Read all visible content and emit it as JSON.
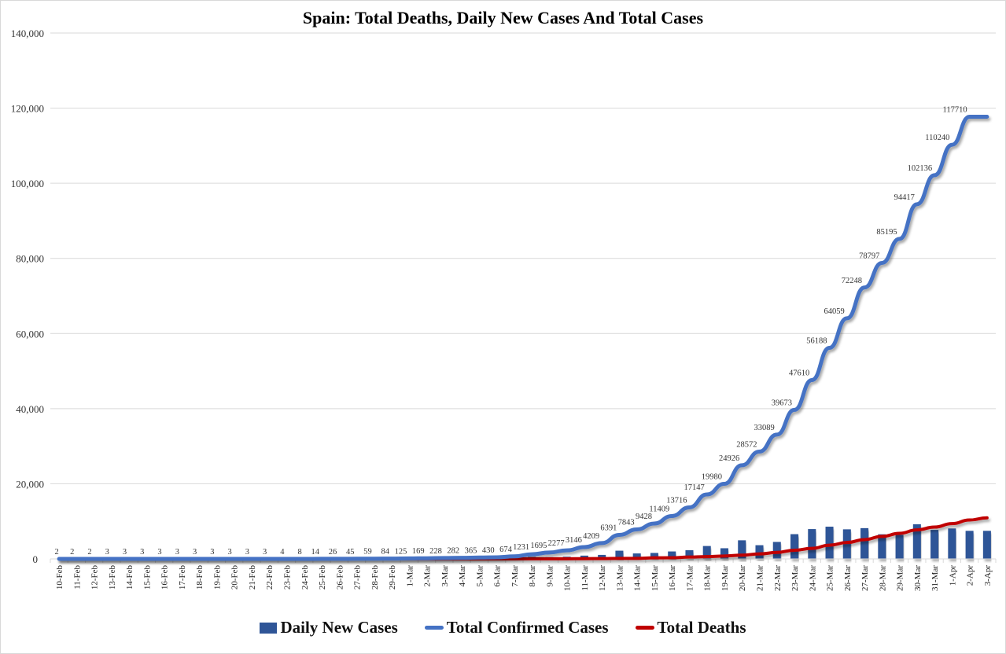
{
  "chart_data": {
    "type": "bar+line",
    "title": "Spain: Total Deaths, Daily New Cases And Total Cases",
    "xlabel": "",
    "ylabel": "",
    "ylim": [
      0,
      140000
    ],
    "yticks": [
      "0",
      "20,000",
      "40,000",
      "60,000",
      "80,000",
      "100,000",
      "120,000",
      "140,000"
    ],
    "ytick_values": [
      0,
      20000,
      40000,
      60000,
      80000,
      100000,
      120000,
      140000
    ],
    "grid": true,
    "legend_position": "bottom",
    "categories": [
      "10-Feb",
      "11-Feb",
      "12-Feb",
      "13-Feb",
      "14-Feb",
      "15-Feb",
      "16-Feb",
      "17-Feb",
      "18-Feb",
      "19-Feb",
      "20-Feb",
      "21-Feb",
      "22-Feb",
      "23-Feb",
      "24-Feb",
      "25-Feb",
      "26-Feb",
      "27-Feb",
      "28-Feb",
      "29-Feb",
      "1-Mar",
      "2-Mar",
      "3-Mar",
      "4-Mar",
      "5-Mar",
      "6-Mar",
      "7-Mar",
      "8-Mar",
      "9-Mar",
      "10-Mar",
      "11-Mar",
      "12-Mar",
      "13-Mar",
      "14-Mar",
      "15-Mar",
      "16-Mar",
      "17-Mar",
      "18-Mar",
      "19-Mar",
      "20-Mar",
      "21-Mar",
      "22-Mar",
      "23-Mar",
      "24-Mar",
      "25-Mar",
      "26-Mar",
      "27-Mar",
      "28-Mar",
      "29-Mar",
      "30-Mar",
      "31-Mar",
      "1-Apr",
      "2-Apr",
      "3-Apr"
    ],
    "series": [
      {
        "name": "Daily New Cases",
        "kind": "bar",
        "color": "#2f5597",
        "values": [
          0,
          0,
          0,
          1,
          0,
          0,
          0,
          0,
          0,
          0,
          0,
          0,
          0,
          1,
          4,
          6,
          12,
          19,
          14,
          25,
          41,
          44,
          59,
          54,
          83,
          65,
          244,
          557,
          464,
          582,
          869,
          1063,
          2182,
          1452,
          1585,
          1981,
          2307,
          3431,
          2833,
          4946,
          3646,
          4517,
          6584,
          7937,
          8578,
          7871,
          8189,
          6549,
          6398,
          9222,
          7719,
          8104,
          7470,
          7470
        ]
      },
      {
        "name": "Total Confirmed Cases",
        "kind": "line",
        "color": "#4472c4",
        "values": [
          2,
          2,
          2,
          3,
          3,
          3,
          3,
          3,
          3,
          3,
          3,
          3,
          3,
          4,
          8,
          14,
          26,
          45,
          59,
          84,
          125,
          169,
          228,
          282,
          365,
          430,
          674,
          1231,
          1695,
          2277,
          3146,
          4209,
          6391,
          7843,
          9428,
          11409,
          13716,
          17147,
          19980,
          24926,
          28572,
          33089,
          39673,
          47610,
          56188,
          64059,
          72248,
          78797,
          85195,
          94417,
          102136,
          110240,
          117710,
          117710
        ],
        "data_labels": true
      },
      {
        "name": "Total Deaths",
        "kind": "line",
        "color": "#c00000",
        "values": [
          0,
          0,
          0,
          0,
          0,
          0,
          0,
          0,
          0,
          0,
          0,
          0,
          0,
          0,
          0,
          0,
          0,
          0,
          0,
          0,
          0,
          0,
          1,
          2,
          3,
          5,
          10,
          17,
          28,
          35,
          54,
          84,
          120,
          136,
          288,
          309,
          491,
          598,
          767,
          1002,
          1326,
          1720,
          2311,
          2808,
          3647,
          4365,
          5138,
          5982,
          6803,
          7716,
          8464,
          9387,
          10348,
          10935
        ]
      }
    ]
  },
  "legend": {
    "items": [
      "Daily New Cases",
      "Total Confirmed Cases",
      "Total Deaths"
    ]
  }
}
